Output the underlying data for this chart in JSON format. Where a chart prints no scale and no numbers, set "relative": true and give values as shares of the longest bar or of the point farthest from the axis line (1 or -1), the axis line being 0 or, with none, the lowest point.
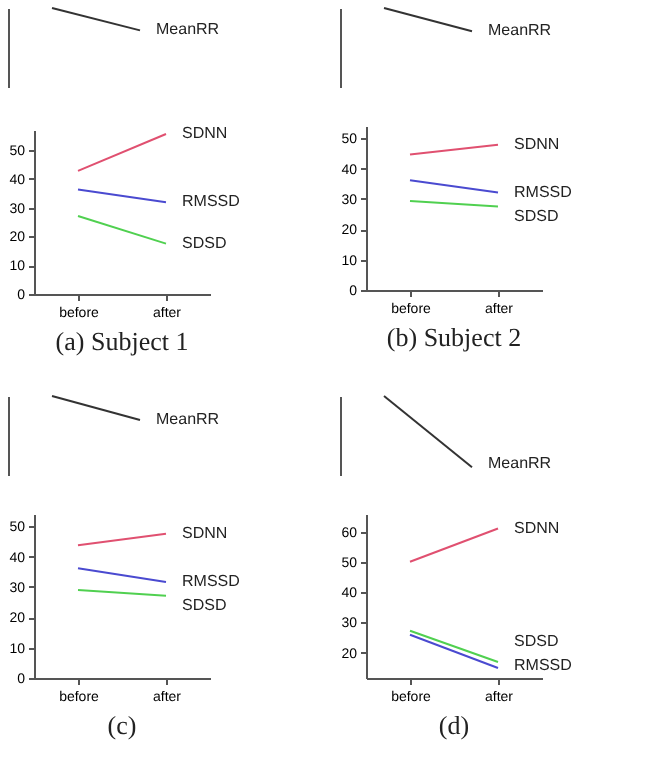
{
  "chart_data": [
    {
      "type": "line",
      "relative": true,
      "grid": false,
      "marker": "none",
      "categories": [
        null,
        null
      ],
      "series": [
        {
          "name": "MeanRR",
          "color": "#333333",
          "values": [
            1,
            0.72
          ]
        }
      ]
    },
    {
      "type": "line",
      "title": "(a) Subject 1",
      "grid": false,
      "marker": "none",
      "categories": [
        "before",
        "after"
      ],
      "ylim": [
        0,
        57
      ],
      "yticks": [
        0,
        10,
        20,
        30,
        40,
        50
      ],
      "series": [
        {
          "name": "SDNN",
          "color": "#e05070",
          "values": [
            42.8,
            55.6
          ]
        },
        {
          "name": "RMSSD",
          "color": "#4a4ad0",
          "values": [
            36.3,
            31.9
          ]
        },
        {
          "name": "SDSD",
          "color": "#50d050",
          "values": [
            27.1,
            17.5
          ]
        }
      ]
    },
    {
      "type": "line",
      "relative": true,
      "grid": false,
      "marker": "none",
      "categories": [
        null,
        null
      ],
      "series": [
        {
          "name": "MeanRR",
          "color": "#333333",
          "values": [
            1,
            0.71
          ]
        }
      ]
    },
    {
      "type": "line",
      "title": "(b) Subject 2",
      "grid": false,
      "marker": "none",
      "categories": [
        "before",
        "after"
      ],
      "ylim": [
        0,
        54
      ],
      "yticks": [
        0,
        10,
        20,
        30,
        40,
        50
      ],
      "series": [
        {
          "name": "SDNN",
          "color": "#e05070",
          "values": [
            44.6,
            47.8
          ]
        },
        {
          "name": "RMSSD",
          "color": "#4a4ad0",
          "values": [
            36.1,
            32.1
          ]
        },
        {
          "name": "SDSD",
          "color": "#50d050",
          "values": [
            29.3,
            27.5
          ]
        }
      ]
    },
    {
      "type": "line",
      "relative": true,
      "grid": false,
      "marker": "none",
      "categories": [
        null,
        null
      ],
      "series": [
        {
          "name": "MeanRR",
          "color": "#333333",
          "values": [
            1,
            0.7
          ]
        }
      ]
    },
    {
      "type": "line",
      "title": "(c)",
      "grid": false,
      "marker": "none",
      "categories": [
        "before",
        "after"
      ],
      "ylim": [
        0,
        54
      ],
      "yticks": [
        0,
        10,
        20,
        30,
        40,
        50
      ],
      "series": [
        {
          "name": "SDNN",
          "color": "#e05070",
          "values": [
            43.7,
            47.5
          ]
        },
        {
          "name": "RMSSD",
          "color": "#4a4ad0",
          "values": [
            36.1,
            31.6
          ]
        },
        {
          "name": "SDSD",
          "color": "#50d050",
          "values": [
            29,
            27.1
          ]
        }
      ]
    },
    {
      "type": "line",
      "relative": true,
      "grid": false,
      "marker": "none",
      "categories": [
        null,
        null
      ],
      "series": [
        {
          "name": "MeanRR",
          "color": "#333333",
          "values": [
            1,
            0.11
          ]
        }
      ]
    },
    {
      "type": "line",
      "title": "(d)",
      "grid": false,
      "marker": "none",
      "categories": [
        "before",
        "after"
      ],
      "ylim": [
        11.6,
        65.8
      ],
      "yticks": [
        20,
        30,
        40,
        50,
        60
      ],
      "series": [
        {
          "name": "SDNN",
          "color": "#e05070",
          "values": [
            50,
            61
          ]
        },
        {
          "name": "RMSSD",
          "color": "#4a4ad0",
          "values": [
            25.9,
            14.9
          ]
        },
        {
          "name": "SDSD",
          "color": "#50d050",
          "values": [
            27.2,
            16.9
          ]
        }
      ]
    }
  ]
}
